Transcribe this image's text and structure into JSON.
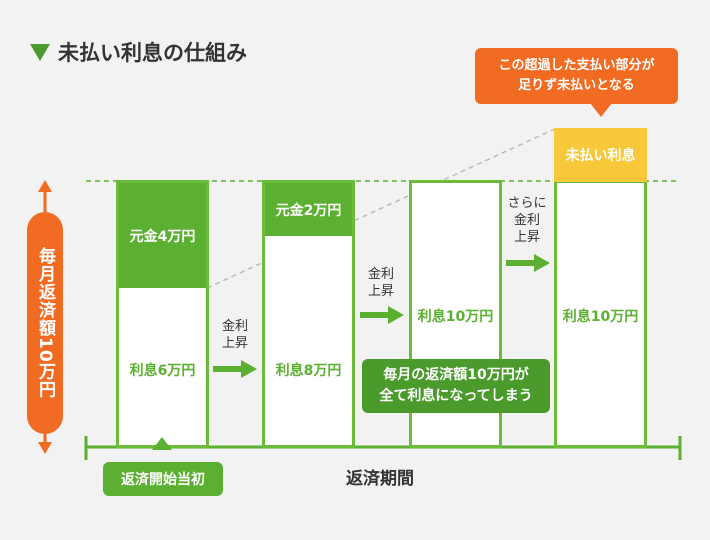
{
  "title": "未払い利息の仕組み",
  "y_axis_label": "毎月返済額10万円",
  "x_axis_label": "返済期間",
  "start_label": "返済開始当初",
  "columns": [
    {
      "principal": "元金4万円",
      "interest": "利息6万円"
    },
    {
      "principal": "元金2万円",
      "interest": "利息8万円"
    },
    {
      "interest": "利息10万円"
    },
    {
      "unpaid": "未払い利息",
      "interest": "利息10万円"
    }
  ],
  "steps": {
    "rate_up_1": "金利\n上昇",
    "rate_up_2": "金利\n上昇",
    "rate_up_3": "さらに\n金利\n上昇"
  },
  "callouts": {
    "unpaid_note": "この超過した支払い部分が\n足りず未払いとなる",
    "all_interest_note": "毎月の返済額10万円が\n全て利息になってしまう"
  },
  "colors": {
    "green": "#5cb031",
    "dark_green": "#4a9a2c",
    "orange": "#f26b22",
    "yellow": "#f7c93a"
  }
}
